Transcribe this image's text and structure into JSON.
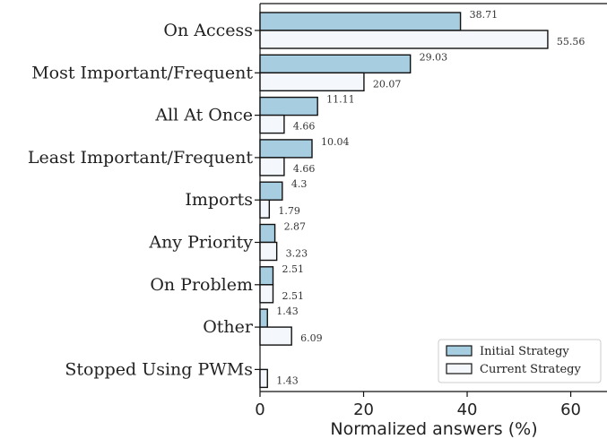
{
  "chart_data": {
    "type": "bar",
    "orientation": "horizontal",
    "categories": [
      "On Access",
      "Most Important/Frequent",
      "All At Once",
      "Least Important/Frequent",
      "Imports",
      "Any Priority",
      "On Problem",
      "Other",
      "Stopped Using PWMs"
    ],
    "series": [
      {
        "name": "Initial Strategy",
        "color": "#a6cde0",
        "values": [
          38.71,
          29.03,
          11.11,
          10.04,
          4.3,
          2.87,
          2.51,
          1.43,
          null
        ],
        "labels": [
          "38.71",
          "29.03",
          "11.11",
          "10.04",
          "4.3",
          "2.87",
          "2.51",
          "1.43",
          ""
        ]
      },
      {
        "name": "Current Strategy",
        "color": "#f4f8fc",
        "values": [
          55.56,
          20.07,
          4.66,
          4.66,
          1.79,
          3.23,
          2.51,
          6.09,
          1.43
        ],
        "labels": [
          "55.56",
          "20.07",
          "4.66",
          "4.66",
          "1.79",
          "3.23",
          "2.51",
          "6.09",
          "1.43"
        ]
      }
    ],
    "xlabel": "Normalized answers (%)",
    "ylabel": "",
    "xlim": [
      0,
      67
    ],
    "xticks": [
      0,
      20,
      40,
      60
    ],
    "xtick_labels": [
      "0",
      "20",
      "40",
      "60"
    ],
    "legend_position": "lower-right",
    "edge_color": "#111111",
    "grid": false
  }
}
